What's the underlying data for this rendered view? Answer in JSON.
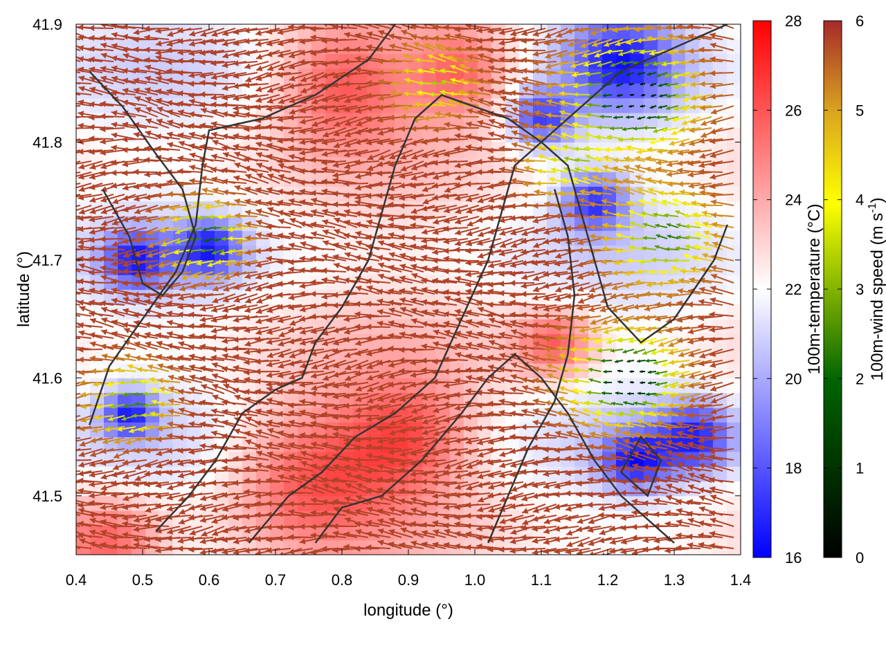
{
  "chart_data": {
    "type": "heatmap",
    "title": "",
    "xlabel": "longitude (°)",
    "ylabel": "latitude (°)",
    "xlim": [
      0.4,
      1.4
    ],
    "ylim": [
      41.45,
      41.9
    ],
    "x_ticks": [
      0.4,
      0.5,
      0.6,
      0.7,
      0.8,
      0.9,
      1.0,
      1.1,
      1.2,
      1.3,
      1.4
    ],
    "x_tick_labels": [
      "0.4",
      "0.5",
      "0.6",
      "0.7",
      "0.8",
      "0.9",
      "1.0",
      "1.1",
      "1.2",
      "1.3",
      "1.4"
    ],
    "y_ticks": [
      41.5,
      41.6,
      41.7,
      41.8,
      41.9
    ],
    "y_tick_labels": [
      "41.5",
      "41.6",
      "41.7",
      "41.8",
      "41.9"
    ],
    "grid": false,
    "layers": [
      {
        "name": "100m-temperature",
        "kind": "filled field",
        "colorbar": {
          "label": "100m-temperature (°C)",
          "range": [
            16,
            28
          ],
          "ticks": [
            16,
            18,
            20,
            22,
            24,
            26,
            28
          ],
          "tick_labels": [
            "16",
            "18",
            "20",
            "22",
            "24",
            "26",
            "28"
          ],
          "colors": [
            "#0000ff",
            "#ffffff",
            "#ff0000"
          ]
        }
      },
      {
        "name": "100m-wind speed",
        "kind": "wind vectors",
        "colorbar": {
          "label_main": "100m-wind speed (m s",
          "label_sup": "-1",
          "label_end": ")",
          "range": [
            0,
            6
          ],
          "ticks": [
            0,
            1,
            2,
            3,
            4,
            5,
            6
          ],
          "tick_labels": [
            "0",
            "1",
            "2",
            "3",
            "4",
            "5",
            "6"
          ],
          "colors": [
            "#000000",
            "#006400",
            "#ffff00",
            "#daa520",
            "#a52a2a"
          ]
        }
      }
    ],
    "contours": [
      [
        [
          0.42,
          41.56
        ],
        [
          0.45,
          41.61
        ],
        [
          0.5,
          41.65
        ],
        [
          0.55,
          41.69
        ],
        [
          0.58,
          41.73
        ],
        [
          0.59,
          41.78
        ],
        [
          0.6,
          41.81
        ],
        [
          0.68,
          41.82
        ],
        [
          0.76,
          41.84
        ],
        [
          0.84,
          41.87
        ],
        [
          0.88,
          41.9
        ]
      ],
      [
        [
          0.52,
          41.47
        ],
        [
          0.57,
          41.5
        ],
        [
          0.61,
          41.53
        ],
        [
          0.65,
          41.57
        ],
        [
          0.7,
          41.59
        ],
        [
          0.74,
          41.6
        ],
        [
          0.76,
          41.63
        ],
        [
          0.8,
          41.66
        ],
        [
          0.84,
          41.7
        ],
        [
          0.86,
          41.74
        ],
        [
          0.88,
          41.78
        ],
        [
          0.91,
          41.82
        ],
        [
          0.95,
          41.84
        ],
        [
          1.05,
          41.82
        ],
        [
          1.1,
          41.8
        ],
        [
          1.14,
          41.78
        ],
        [
          1.16,
          41.74
        ],
        [
          1.18,
          41.7
        ],
        [
          1.2,
          41.66
        ],
        [
          1.25,
          41.63
        ],
        [
          1.3,
          41.65
        ],
        [
          1.36,
          41.7
        ],
        [
          1.38,
          41.73
        ]
      ],
      [
        [
          0.66,
          41.46
        ],
        [
          0.72,
          41.5
        ],
        [
          0.77,
          41.52
        ],
        [
          0.82,
          41.55
        ],
        [
          0.88,
          41.57
        ],
        [
          0.94,
          41.6
        ],
        [
          0.98,
          41.65
        ],
        [
          1.02,
          41.7
        ],
        [
          1.04,
          41.74
        ],
        [
          1.06,
          41.78
        ],
        [
          1.1,
          41.8
        ],
        [
          1.14,
          41.82
        ],
        [
          1.18,
          41.84
        ],
        [
          1.22,
          41.86
        ],
        [
          1.3,
          41.88
        ],
        [
          1.38,
          41.9
        ]
      ],
      [
        [
          0.76,
          41.46
        ],
        [
          0.8,
          41.49
        ],
        [
          0.86,
          41.5
        ],
        [
          0.92,
          41.53
        ],
        [
          0.98,
          41.57
        ],
        [
          1.02,
          41.6
        ],
        [
          1.06,
          41.62
        ],
        [
          1.1,
          41.6
        ],
        [
          1.14,
          41.57
        ],
        [
          1.18,
          41.53
        ],
        [
          1.22,
          41.5
        ],
        [
          1.26,
          41.48
        ],
        [
          1.3,
          41.46
        ]
      ],
      [
        [
          0.44,
          41.76
        ],
        [
          0.48,
          41.72
        ],
        [
          0.5,
          41.68
        ],
        [
          0.53,
          41.67
        ],
        [
          0.56,
          41.69
        ],
        [
          0.58,
          41.72
        ],
        [
          0.56,
          41.76
        ],
        [
          0.52,
          41.79
        ],
        [
          0.47,
          41.83
        ],
        [
          0.42,
          41.86
        ]
      ],
      [
        [
          1.22,
          41.52
        ],
        [
          1.26,
          41.5
        ],
        [
          1.28,
          41.53
        ],
        [
          1.25,
          41.55
        ],
        [
          1.22,
          41.52
        ]
      ],
      [
        [
          1.02,
          41.46
        ],
        [
          1.05,
          41.5
        ],
        [
          1.08,
          41.54
        ],
        [
          1.12,
          41.58
        ],
        [
          1.14,
          41.62
        ],
        [
          1.15,
          41.67
        ],
        [
          1.14,
          41.72
        ],
        [
          1.12,
          41.76
        ]
      ]
    ]
  }
}
